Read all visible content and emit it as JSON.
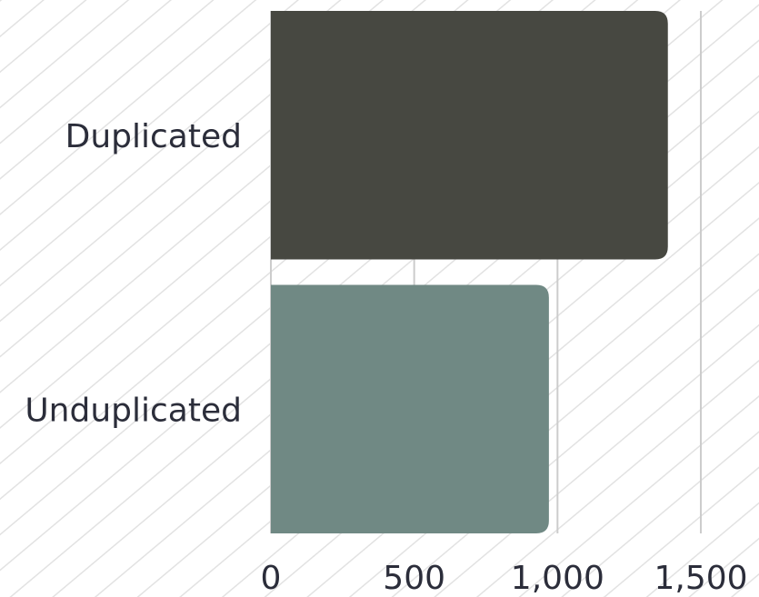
{
  "chart_data": {
    "type": "bar",
    "orientation": "horizontal",
    "categories": [
      "Duplicated",
      "Unduplicated"
    ],
    "values": [
      1385,
      970
    ],
    "colors": [
      "#474841",
      "#708984"
    ],
    "xlim": [
      0,
      1500
    ],
    "xticks": [
      0,
      500,
      1000,
      1500
    ],
    "xtick_labels": [
      "0",
      "500",
      "1,000",
      "1,500"
    ],
    "grid": "vertical",
    "background": "diagonal-hatch"
  }
}
